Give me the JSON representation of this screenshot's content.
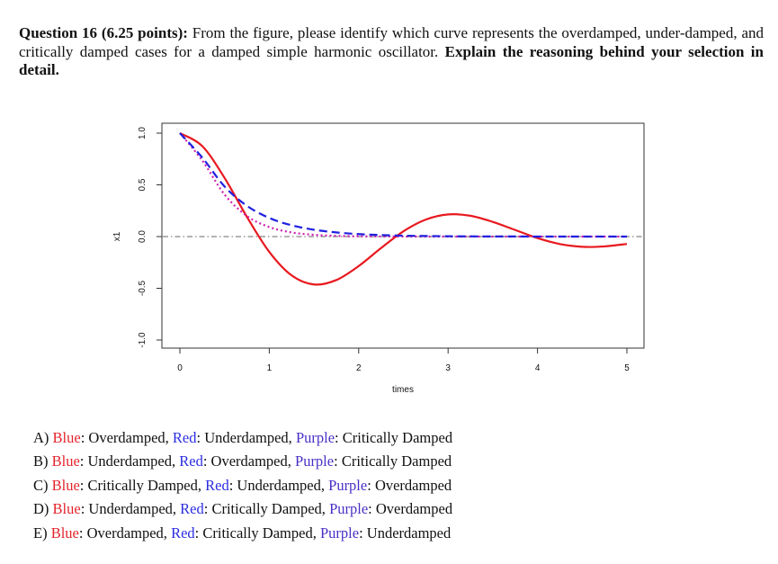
{
  "question": {
    "label": "Question 16 (6.25 points):",
    "text": "From the figure, please identify which curve represents the overdamped, under-damped, and critically damped cases for a damped simple harmonic oscillator.",
    "emphasis": "Explain the reasoning behind your selection in detail."
  },
  "colors": {
    "blue_word": "#e3242b",
    "red_word": "#2b2ee0",
    "purple_word": "#4a2fc6"
  },
  "options": [
    {
      "letter": "A)",
      "blue": "Blue",
      "blue_val": ": Overdamped, ",
      "red": "Red",
      "red_val": ": Underdamped, ",
      "purple": "Purple",
      "purple_val": ": Critically Damped"
    },
    {
      "letter": "B)",
      "blue": "Blue",
      "blue_val": ": Underdamped, ",
      "red": "Red",
      "red_val": ": Overdamped, ",
      "purple": "Purple",
      "purple_val": ": Critically Damped"
    },
    {
      "letter": "C)",
      "blue": "Blue",
      "blue_val": ": Critically Damped, ",
      "red": "Red",
      "red_val": ": Underdamped, ",
      "purple": "Purple",
      "purple_val": ": Overdamped"
    },
    {
      "letter": "D)",
      "blue": "Blue",
      "blue_val": ": Underdamped, ",
      "red": "Red",
      "red_val": ": Critically Damped, ",
      "purple": "Purple",
      "purple_val": ": Overdamped"
    },
    {
      "letter": "E)",
      "blue": "Blue",
      "blue_val": ": Overdamped, ",
      "red": "Red",
      "red_val": ": Critically Damped, ",
      "purple": "Purple",
      "purple_val": ": Underdamped"
    }
  ],
  "chart_data": {
    "type": "line",
    "title": "",
    "xlabel": "times",
    "ylabel": "x1",
    "xlim": [
      0,
      5
    ],
    "ylim": [
      -1.0,
      1.0
    ],
    "xticks": [
      "0",
      "1",
      "2",
      "3",
      "4",
      "5"
    ],
    "yticks": [
      "-1.0",
      "-0.5",
      "0.0",
      "0.5",
      "1.0"
    ],
    "x": [
      0,
      0.25,
      0.5,
      0.75,
      1,
      1.25,
      1.5,
      1.75,
      2,
      2.25,
      2.5,
      2.75,
      3,
      3.25,
      3.5,
      3.75,
      4,
      4.25,
      4.5,
      4.75,
      5
    ],
    "series": [
      {
        "name": "red (solid)",
        "color": "#e8191f",
        "style": "solid",
        "values": [
          1,
          0.875,
          0.567,
          0.19,
          -0.148,
          -0.375,
          -0.463,
          -0.42,
          -0.285,
          -0.111,
          0.051,
          0.164,
          0.214,
          0.201,
          0.142,
          0.064,
          -0.015,
          -0.072,
          -0.099,
          -0.095,
          -0.071
        ]
      },
      {
        "name": "purple (dotted)",
        "color": "#d020b0",
        "style": "dotted",
        "values": [
          1,
          0.736,
          0.406,
          0.199,
          0.092,
          0.04,
          0.017,
          0.007,
          0.003,
          0.001,
          0,
          0,
          0,
          0,
          0,
          0,
          0,
          0,
          0,
          0,
          0
        ]
      },
      {
        "name": "blue (dashed)",
        "color": "#2020e0",
        "style": "dashed",
        "values": [
          1,
          0.764,
          0.484,
          0.297,
          0.18,
          0.109,
          0.066,
          0.04,
          0.024,
          0.015,
          0.009,
          0.006,
          0.003,
          0.002,
          0.001,
          0.001,
          0,
          0,
          0,
          0,
          0
        ]
      }
    ],
    "reference_line": {
      "y": 0,
      "style": "dash-dot",
      "color": "#888888"
    },
    "grid": false
  }
}
